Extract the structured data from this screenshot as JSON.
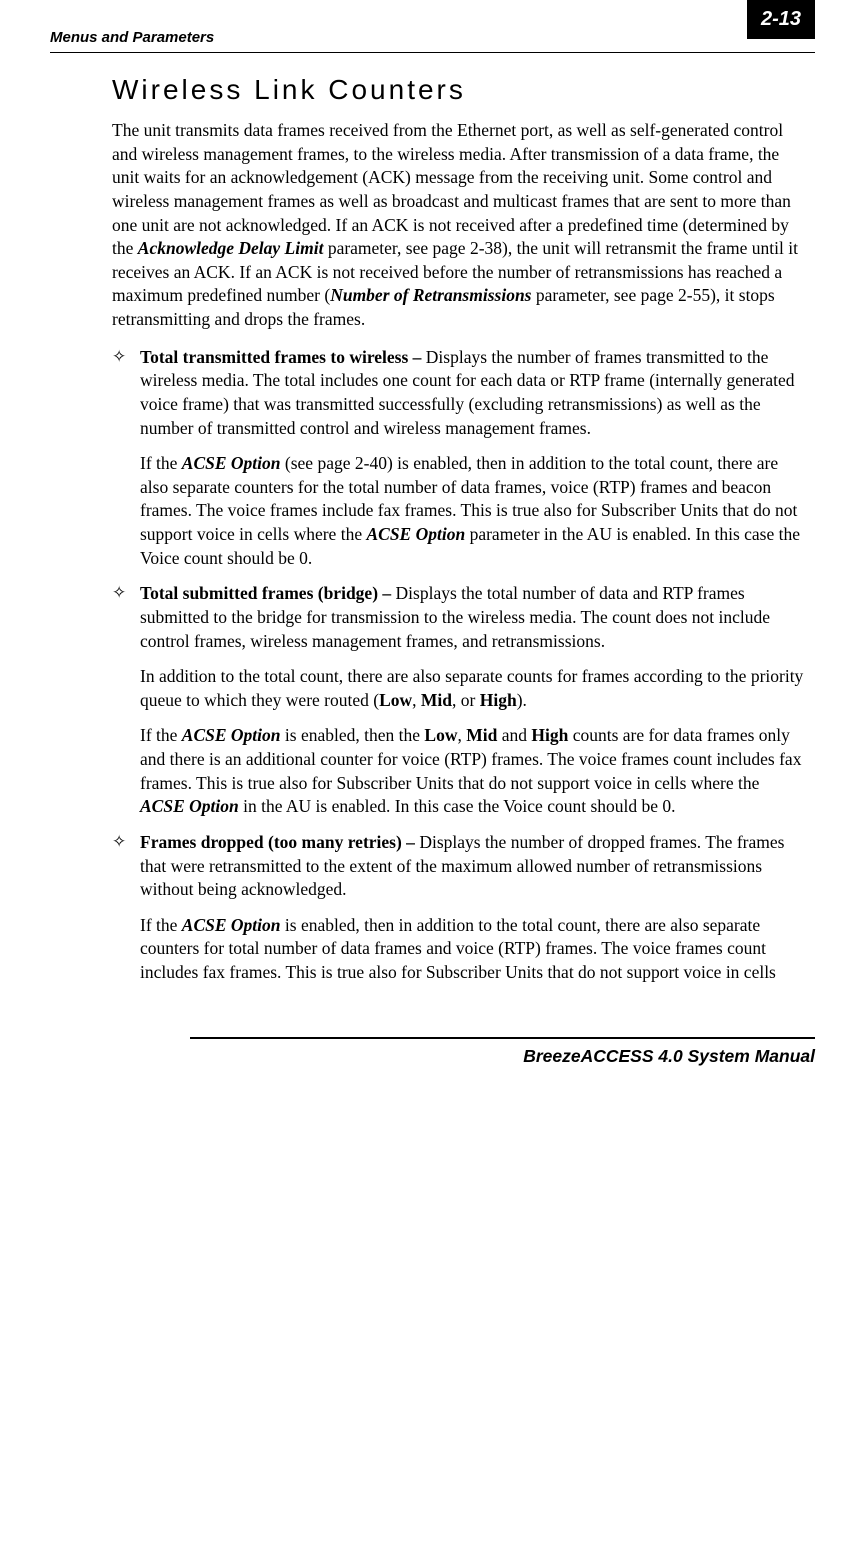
{
  "header": {
    "left": "Menus and Parameters",
    "pageNumber": "2-13"
  },
  "section": {
    "title": "Wireless Link Counters",
    "intro_parts": [
      "The unit transmits data frames received from the Ethernet port, as well as self-generated control and wireless management frames, to the wireless media. After transmission of a data frame, the unit waits for an acknowledgement (ACK) message from the receiving unit. Some control and wireless management frames as well as broadcast and multicast frames that are sent to more than one unit are not acknowledged. If an ACK is not received after a predefined time (determined by the ",
      "Acknowledge Delay Limit",
      " parameter, see page 2-38), the unit will retransmit the frame until it receives an ACK. If an ACK is not received before the number of retransmissions has reached a maximum predefined number (",
      "Number of Retransmissions",
      " parameter, see page 2-55), it stops retransmitting and drops the frames."
    ],
    "items": [
      {
        "lead": "Total transmitted frames to wireless –",
        "text": " Displays the number of frames transmitted to the wireless media. The total includes one count for each data or RTP frame (internally generated voice frame) that was transmitted successfully (excluding retransmissions) as well as the number of transmitted control and wireless management frames.",
        "sub": [
          {
            "parts": [
              "If the ",
              {
                "bi": "ACSE Option"
              },
              " (see page 2-40) is enabled, then in addition to the total count, there are also separate counters for the total number of data frames, voice (RTP) frames and beacon frames. The voice frames include fax frames. This is true also for Subscriber Units that do not support voice in cells where the ",
              {
                "bi": "ACSE Option"
              },
              " parameter in the AU is enabled. In this case the Voice count should be 0."
            ]
          }
        ]
      },
      {
        "lead": "Total submitted frames (bridge) –",
        "text": " Displays the total number of data and RTP frames submitted to the bridge for transmission to the wireless media. The count does not include control frames, wireless management frames, and retransmissions.",
        "sub": [
          {
            "parts": [
              "In addition to the total count, there are also separate counts for frames according to the priority queue to which they were routed (",
              {
                "b": "Low"
              },
              ", ",
              {
                "b": "Mid"
              },
              ", or ",
              {
                "b": "High"
              },
              ")."
            ]
          },
          {
            "parts": [
              "If the ",
              {
                "bi": "ACSE Option"
              },
              " is enabled, then the ",
              {
                "b": "Low"
              },
              ", ",
              {
                "b": "Mid"
              },
              " and ",
              {
                "b": "High"
              },
              " counts are for data frames only and there is an additional counter for voice (RTP) frames. The voice frames count includes fax frames. This is true also for Subscriber Units that do not support voice in cells where the ",
              {
                "bi": "ACSE Option"
              },
              " in the AU is enabled. In this case the Voice count should be 0."
            ]
          }
        ]
      },
      {
        "lead": "Frames dropped (too many retries) –",
        "text": " Displays the number of dropped frames. The frames that were retransmitted to the extent of the maximum allowed number of retransmissions without being acknowledged.",
        "sub": [
          {
            "parts": [
              "If the ",
              {
                "bi": "ACSE Option"
              },
              " is enabled, then in addition to the total count, there are also separate counters for total number of data frames and voice (RTP) frames. The voice frames count includes fax frames. This is true also for Subscriber Units that do not support voice in cells"
            ]
          }
        ]
      }
    ]
  },
  "footer": {
    "text": "BreezeACCESS 4.0 System Manual"
  }
}
